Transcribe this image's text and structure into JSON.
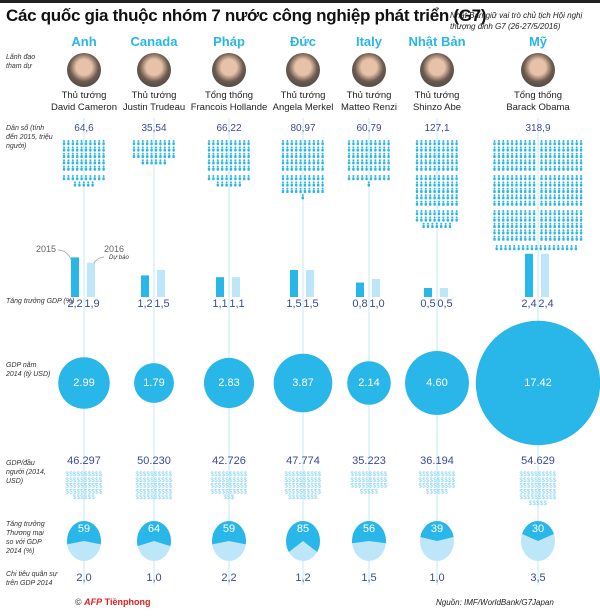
{
  "title": "Các quốc gia thuộc nhóm 7 nước công nghiệp phát triển (G7)",
  "note": "Nhật Bản giữ vai trò chủ tịch Hội nghị thượng đỉnh G7 (26-27/5/2016)",
  "labels": {
    "leaders": "Lãnh đạo tham dự",
    "population": "Dân số (tính đến 2015, triệu người)",
    "gdp_growth": "Tăng trưởng GDP (%)",
    "gdp_2014": "GDP năm 2014 (tỷ USD)",
    "gdp_per_capita": "GDP/đầu người (2014, USD)",
    "trade": "Tăng trưởng Thương mại so với GDP 2014 (%)",
    "military": "Chi tiêu quân sự trên GDP 2014",
    "year_2015": "2015",
    "year_2016": "2016",
    "forecast": "Dự báo"
  },
  "colors": {
    "accent": "#29b6e8",
    "light": "#bde6f8",
    "value": "#3a4a9a",
    "line": "#c5eaf6"
  },
  "footer": {
    "credit": "© AFP Tiềnphong",
    "source": "Nguồn: IMF/WorldBank/G7Japan"
  },
  "countries": [
    {
      "name": "Anh",
      "role": "Thủ tướng",
      "leader": "David Cameron",
      "pop": "64,6",
      "g15": "2,2",
      "g16": "1,9",
      "gdp": "2.99",
      "pc": "46.297",
      "trade": "59",
      "mil": "2,0"
    },
    {
      "name": "Canada",
      "role": "Thủ tướng",
      "leader": "Justin Trudeau",
      "pop": "35,54",
      "g15": "1,2",
      "g16": "1,5",
      "gdp": "1.79",
      "pc": "50.230",
      "trade": "64",
      "mil": "1,0"
    },
    {
      "name": "Pháp",
      "role": "Tổng thống",
      "leader": "Francois Hollande",
      "pop": "66,22",
      "g15": "1,1",
      "g16": "1,1",
      "gdp": "2.83",
      "pc": "42.726",
      "trade": "59",
      "mil": "2,2"
    },
    {
      "name": "Đức",
      "role": "Thủ tướng",
      "leader": "Angela Merkel",
      "pop": "80,97",
      "g15": "1,5",
      "g16": "1,5",
      "gdp": "3.87",
      "pc": "47.774",
      "trade": "85",
      "mil": "1,2"
    },
    {
      "name": "Italy",
      "role": "Thủ tướng",
      "leader": "Matteo Renzi",
      "pop": "60,79",
      "g15": "0,8",
      "g16": "1,0",
      "gdp": "2.14",
      "pc": "35.223",
      "trade": "56",
      "mil": "1,5"
    },
    {
      "name": "Nhật Bản",
      "role": "Thủ tướng",
      "leader": "Shinzo Abe",
      "pop": "127,1",
      "g15": "0,5",
      "g16": "0,5",
      "gdp": "4.60",
      "pc": "36.194",
      "trade": "39",
      "mil": "1,0"
    },
    {
      "name": "Mỹ",
      "role": "Tổng thống",
      "leader": "Barack Obama",
      "pop": "318,9",
      "g15": "2,4",
      "g16": "2,4",
      "gdp": "17.42",
      "pc": "54.629",
      "trade": "30",
      "mil": "3,5"
    }
  ],
  "chart_data": {
    "type": "table",
    "categories": [
      "Anh",
      "Canada",
      "Pháp",
      "Đức",
      "Italy",
      "Nhật Bản",
      "Mỹ"
    ],
    "series": [
      {
        "name": "Dân số (tính đến 2015, triệu người)",
        "values": [
          64.6,
          35.54,
          66.22,
          80.97,
          60.79,
          127.1,
          318.9
        ]
      },
      {
        "name": "2015",
        "values": [
          2.2,
          1.2,
          1.1,
          1.5,
          0.8,
          0.5,
          2.4
        ]
      },
      {
        "name": "2016",
        "values": [
          1.9,
          1.5,
          1.1,
          1.5,
          1.0,
          0.5,
          2.4
        ]
      },
      {
        "name": "GDP năm 2014 (tỷ USD)",
        "values": [
          2.99,
          1.79,
          2.83,
          3.87,
          2.14,
          4.6,
          17.42
        ]
      },
      {
        "name": "GDP/đầu người (2014, USD)",
        "values": [
          46297,
          50230,
          42726,
          47774,
          35223,
          36194,
          54629
        ]
      },
      {
        "name": "Tăng trưởng Thương mại so với GDP 2014 (%)",
        "values": [
          59,
          64,
          59,
          85,
          56,
          39,
          30
        ]
      },
      {
        "name": "Chi tiêu quân sự trên GDP 2014",
        "values": [
          2.0,
          1.0,
          2.2,
          1.2,
          1.5,
          1.0,
          3.5
        ]
      }
    ]
  }
}
